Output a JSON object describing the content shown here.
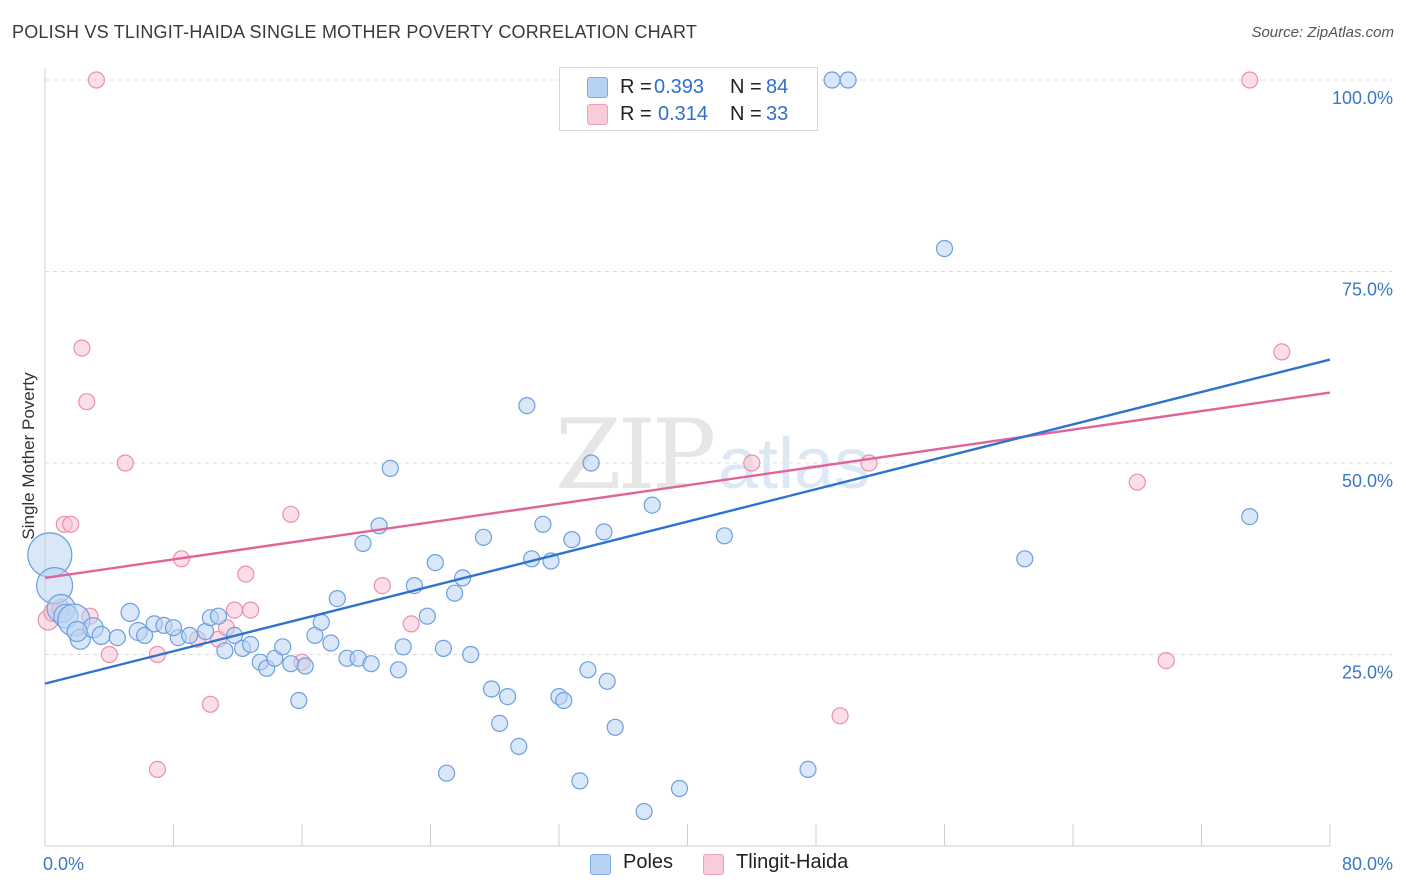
{
  "title": "POLISH VS TLINGIT-HAIDA SINGLE MOTHER POVERTY CORRELATION CHART",
  "source": "Source: ZipAtlas.com",
  "watermark": "ZIPatlas",
  "legend": {
    "r_label": "R =",
    "n_label": "N =",
    "rows": [
      {
        "r": "0.393",
        "n": "84",
        "color": "#a9c8f0"
      },
      {
        "r": "0.314",
        "n": "33",
        "color": "#f5b6c8"
      }
    ]
  },
  "bottom_legend": [
    {
      "label": "Poles",
      "color": "#a9c8f0"
    },
    {
      "label": "Tlingit-Haida",
      "color": "#f5b6c8"
    }
  ],
  "chart_data": {
    "type": "scatter",
    "xlabel": "",
    "ylabel": "Single Mother Poverty",
    "xlim": [
      0,
      80
    ],
    "ylim": [
      0,
      100
    ],
    "x_tick_labels": [
      "0.0%",
      "80.0%"
    ],
    "y_tick_labels": [
      "100.0%",
      "75.0%",
      "50.0%",
      "25.0%"
    ],
    "y_ticks": [
      100,
      75,
      50,
      25
    ],
    "grid": true,
    "colors": {
      "poles": "#5a96e0",
      "tlingit": "#e889a8",
      "poles_line": "#2f73d0",
      "tlingit_line": "#e0649a"
    },
    "series": [
      {
        "name": "Poles",
        "points": [
          [
            0.3,
            38.0,
            22
          ],
          [
            0.6,
            34.0,
            18
          ],
          [
            1.0,
            31.0,
            14
          ],
          [
            1.3,
            30.0,
            12
          ],
          [
            1.8,
            29.5,
            16
          ],
          [
            2.2,
            27.0,
            10
          ],
          [
            3.0,
            28.5,
            10
          ],
          [
            3.5,
            27.5,
            9
          ],
          [
            4.5,
            27.2,
            8
          ],
          [
            5.3,
            30.5,
            9
          ],
          [
            5.8,
            28.0,
            9
          ],
          [
            6.2,
            27.5,
            8
          ],
          [
            6.8,
            29.0,
            8
          ],
          [
            7.4,
            28.8,
            8
          ],
          [
            8.3,
            27.2,
            8
          ],
          [
            8.0,
            28.5,
            8
          ],
          [
            9.0,
            27.5,
            8
          ],
          [
            10.0,
            28.0,
            8
          ],
          [
            10.3,
            29.8,
            8
          ],
          [
            10.8,
            30.0,
            8
          ],
          [
            11.2,
            25.5,
            8
          ],
          [
            11.8,
            27.5,
            8
          ],
          [
            12.3,
            25.8,
            8
          ],
          [
            12.8,
            26.3,
            8
          ],
          [
            13.4,
            24.0,
            8
          ],
          [
            13.8,
            23.2,
            8
          ],
          [
            14.3,
            24.5,
            8
          ],
          [
            14.8,
            26.0,
            8
          ],
          [
            15.3,
            23.8,
            8
          ],
          [
            15.8,
            19.0,
            8
          ],
          [
            16.2,
            23.5,
            8
          ],
          [
            16.8,
            27.5,
            8
          ],
          [
            17.2,
            29.2,
            8
          ],
          [
            17.8,
            26.5,
            8
          ],
          [
            18.2,
            32.3,
            8
          ],
          [
            18.8,
            24.5,
            8
          ],
          [
            19.5,
            24.5,
            8
          ],
          [
            19.8,
            39.5,
            8
          ],
          [
            20.3,
            23.8,
            8
          ],
          [
            20.8,
            41.8,
            8
          ],
          [
            21.5,
            49.3,
            8
          ],
          [
            22.0,
            23.0,
            8
          ],
          [
            22.3,
            26.0,
            8
          ],
          [
            23.0,
            34.0,
            8
          ],
          [
            23.8,
            30.0,
            8
          ],
          [
            24.3,
            37.0,
            8
          ],
          [
            24.8,
            25.8,
            8
          ],
          [
            25.0,
            9.5,
            8
          ],
          [
            25.5,
            33.0,
            8
          ],
          [
            26.0,
            35.0,
            8
          ],
          [
            26.5,
            25.0,
            8
          ],
          [
            27.3,
            40.3,
            8
          ],
          [
            27.8,
            20.5,
            8
          ],
          [
            28.3,
            16.0,
            8
          ],
          [
            28.8,
            19.5,
            8
          ],
          [
            29.5,
            13.0,
            8
          ],
          [
            30.0,
            57.5,
            8
          ],
          [
            30.3,
            37.5,
            8
          ],
          [
            31.0,
            42.0,
            8
          ],
          [
            31.5,
            37.2,
            8
          ],
          [
            32.0,
            19.5,
            8
          ],
          [
            32.3,
            19.0,
            8
          ],
          [
            32.8,
            40.0,
            8
          ],
          [
            33.3,
            8.5,
            8
          ],
          [
            33.8,
            23.0,
            8
          ],
          [
            34.0,
            50.0,
            8
          ],
          [
            34.8,
            41.0,
            8
          ],
          [
            35.0,
            21.5,
            8
          ],
          [
            35.5,
            15.5,
            8
          ],
          [
            37.0,
            100,
            8
          ],
          [
            37.3,
            4.5,
            8
          ],
          [
            37.8,
            44.5,
            8
          ],
          [
            39.5,
            7.5,
            8
          ],
          [
            42.3,
            40.5,
            8
          ],
          [
            43.0,
            100,
            8
          ],
          [
            47.5,
            10.0,
            8
          ],
          [
            49.0,
            100,
            8
          ],
          [
            50.0,
            100,
            8
          ],
          [
            56.0,
            78.0,
            8
          ],
          [
            61.0,
            37.5,
            8
          ],
          [
            75.0,
            43.0,
            8
          ],
          [
            36.5,
            100,
            8
          ],
          [
            41.3,
            100,
            8
          ],
          [
            2.0,
            28.0,
            10
          ]
        ]
      },
      {
        "name": "Tlingit-Haida",
        "points": [
          [
            0.2,
            29.5,
            10
          ],
          [
            0.5,
            30.5,
            9
          ],
          [
            1.0,
            31.0,
            9
          ],
          [
            1.2,
            42.0,
            8
          ],
          [
            1.6,
            42.0,
            8
          ],
          [
            2.3,
            65.0,
            8
          ],
          [
            2.6,
            58.0,
            8
          ],
          [
            2.8,
            30.0,
            8
          ],
          [
            3.2,
            100,
            8
          ],
          [
            4.0,
            25.0,
            8
          ],
          [
            5.0,
            50.0,
            8
          ],
          [
            7.0,
            25.0,
            8
          ],
          [
            7.0,
            10.0,
            8
          ],
          [
            8.5,
            37.5,
            8
          ],
          [
            9.5,
            27.0,
            8
          ],
          [
            10.3,
            18.5,
            8
          ],
          [
            10.8,
            27.0,
            8
          ],
          [
            11.3,
            28.5,
            8
          ],
          [
            11.8,
            30.8,
            8
          ],
          [
            12.5,
            35.5,
            8
          ],
          [
            12.8,
            30.8,
            8
          ],
          [
            15.3,
            43.3,
            8
          ],
          [
            16.0,
            24.0,
            8
          ],
          [
            21.0,
            34.0,
            8
          ],
          [
            22.8,
            29.0,
            8
          ],
          [
            36.5,
            100,
            8
          ],
          [
            44.0,
            50.0,
            8
          ],
          [
            49.5,
            17.0,
            8
          ],
          [
            51.3,
            50.0,
            8
          ],
          [
            68.0,
            47.5,
            8
          ],
          [
            69.8,
            24.2,
            8
          ],
          [
            75.0,
            100,
            8
          ],
          [
            77.0,
            64.5,
            8
          ]
        ]
      }
    ],
    "trendlines": [
      {
        "name": "Poles",
        "x": [
          0,
          80
        ],
        "y": [
          21.2,
          63.5
        ]
      },
      {
        "name": "Tlingit-Haida",
        "x": [
          0,
          80
        ],
        "y": [
          35.0,
          59.2
        ]
      }
    ]
  }
}
